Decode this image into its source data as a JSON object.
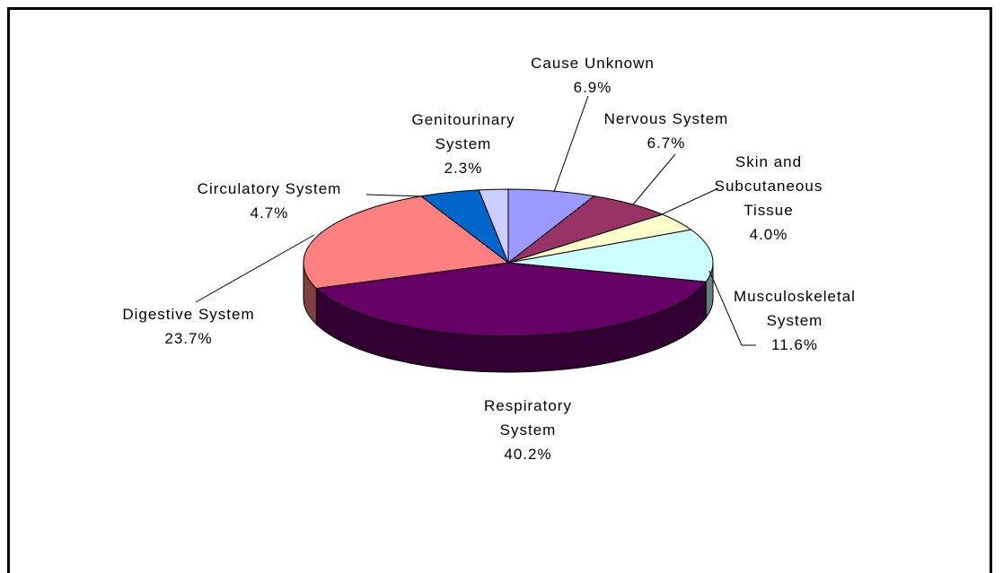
{
  "chart_data": {
    "type": "pie3d",
    "categories": [
      "Cause Unknown",
      "Nervous System",
      "Skin and Subcutaneous Tissue",
      "Musculoskeletal System",
      "Respiratory System",
      "Digestive System",
      "Circulatory System",
      "Genitourinary System"
    ],
    "values": [
      6.9,
      6.7,
      4.0,
      11.6,
      40.2,
      23.7,
      4.7,
      2.3
    ],
    "value_labels": [
      "6.9%",
      "6.7%",
      "4.0%",
      "11.6%",
      "40.2%",
      "23.7%",
      "4.7%",
      "2.3%"
    ],
    "colors": [
      "#9999ff",
      "#993366",
      "#ffffcc",
      "#ccffff",
      "#660066",
      "#ff8080",
      "#0066cc",
      "#ccccff"
    ]
  }
}
